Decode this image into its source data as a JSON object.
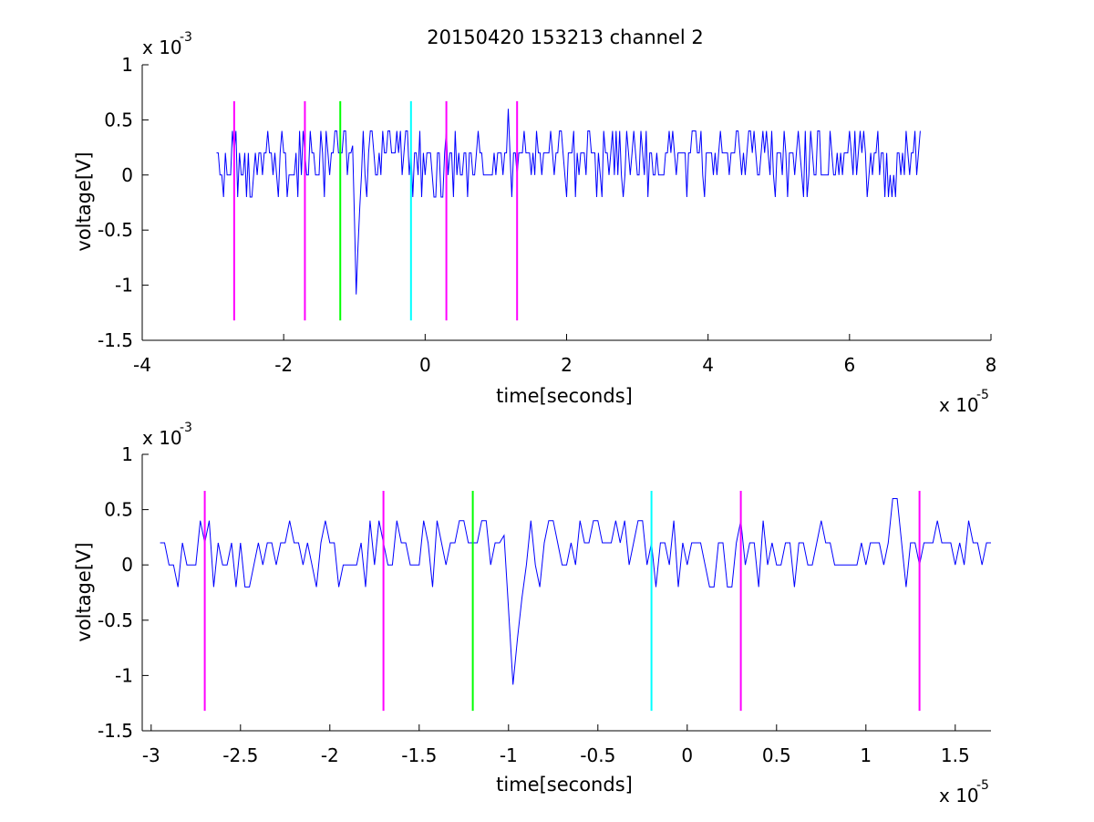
{
  "figure": {
    "title": "20150420 153213 channel 2",
    "background": "#ffffff"
  },
  "colors": {
    "signal": "#0000ff",
    "marker_magenta": "#ff00ff",
    "marker_green": "#00ff00",
    "marker_cyan": "#00ffff",
    "axes": "#000000"
  },
  "chart_data": [
    {
      "type": "line",
      "xlabel": "time[seconds]",
      "ylabel": "voltage[V]",
      "x_multiplier": {
        "base": "x 10",
        "exponent": "-5"
      },
      "y_multiplier": {
        "base": "x 10",
        "exponent": "-3"
      },
      "xlim": [
        -4,
        8
      ],
      "ylim": [
        -1.5,
        1
      ],
      "x_ticks": [
        -4,
        -2,
        0,
        2,
        4,
        6,
        8
      ],
      "x_tick_labels": [
        "-4",
        "-2",
        "0",
        "2",
        "4",
        "6",
        "8"
      ],
      "y_ticks": [
        -1.5,
        -1,
        -0.5,
        0,
        0.5,
        1
      ],
      "y_tick_labels": [
        "-1.5",
        "-1",
        "-0.5",
        "0",
        "0.5",
        "1"
      ],
      "grid": false,
      "series": [
        {
          "x_range": [
            -2.95,
            7.0
          ],
          "baseline": 0.2,
          "step": 0.2,
          "low": -0.2,
          "high": 0.4,
          "spike": {
            "x": -0.97,
            "y": -1.2
          },
          "peak": {
            "x": 1.17,
            "y": 0.6
          }
        }
      ],
      "markers": [
        {
          "x": -2.7,
          "color": "marker_magenta",
          "y_range": [
            -1.32,
            0.67
          ]
        },
        {
          "x": -1.7,
          "color": "marker_magenta",
          "y_range": [
            -1.32,
            0.67
          ]
        },
        {
          "x": -1.2,
          "color": "marker_green",
          "y_range": [
            -1.32,
            0.67
          ]
        },
        {
          "x": -0.2,
          "color": "marker_cyan",
          "y_range": [
            -1.32,
            0.67
          ]
        },
        {
          "x": 0.3,
          "color": "marker_magenta",
          "y_range": [
            -1.32,
            0.67
          ]
        },
        {
          "x": 1.3,
          "color": "marker_magenta",
          "y_range": [
            -1.32,
            0.67
          ]
        }
      ]
    },
    {
      "type": "line",
      "xlabel": "time[seconds]",
      "ylabel": "voltage[V]",
      "x_multiplier": {
        "base": "x 10",
        "exponent": "-5"
      },
      "y_multiplier": {
        "base": "x 10",
        "exponent": "-3"
      },
      "xlim": [
        -3.05,
        1.7
      ],
      "ylim": [
        -1.5,
        1
      ],
      "x_ticks": [
        -3,
        -2.5,
        -2,
        -1.5,
        -1,
        -0.5,
        0,
        0.5,
        1,
        1.5
      ],
      "x_tick_labels": [
        "-3",
        "-2.5",
        "-2",
        "-1.5",
        "-1",
        "-0.5",
        "0",
        "0.5",
        "1",
        "1.5"
      ],
      "y_ticks": [
        -1.5,
        -1,
        -0.5,
        0,
        0.5,
        1
      ],
      "y_tick_labels": [
        "-1.5",
        "-1",
        "-0.5",
        "0",
        "0.5",
        "1"
      ],
      "grid": false,
      "series": [
        {
          "x_range": [
            -2.95,
            1.7
          ],
          "baseline": 0.2,
          "step": 0.2,
          "low": -0.2,
          "high": 0.4,
          "spike": {
            "x": -0.97,
            "y": -1.2
          },
          "peak": {
            "x": 1.17,
            "y": 0.6
          }
        }
      ],
      "markers": [
        {
          "x": -2.7,
          "color": "marker_magenta",
          "y_range": [
            -1.32,
            0.67
          ]
        },
        {
          "x": -1.7,
          "color": "marker_magenta",
          "y_range": [
            -1.32,
            0.67
          ]
        },
        {
          "x": -1.2,
          "color": "marker_green",
          "y_range": [
            -1.32,
            0.67
          ]
        },
        {
          "x": -0.2,
          "color": "marker_cyan",
          "y_range": [
            -1.32,
            0.67
          ]
        },
        {
          "x": 0.3,
          "color": "marker_magenta",
          "y_range": [
            -1.32,
            0.67
          ]
        },
        {
          "x": 1.3,
          "color": "marker_magenta",
          "y_range": [
            -1.32,
            0.67
          ]
        }
      ]
    }
  ]
}
